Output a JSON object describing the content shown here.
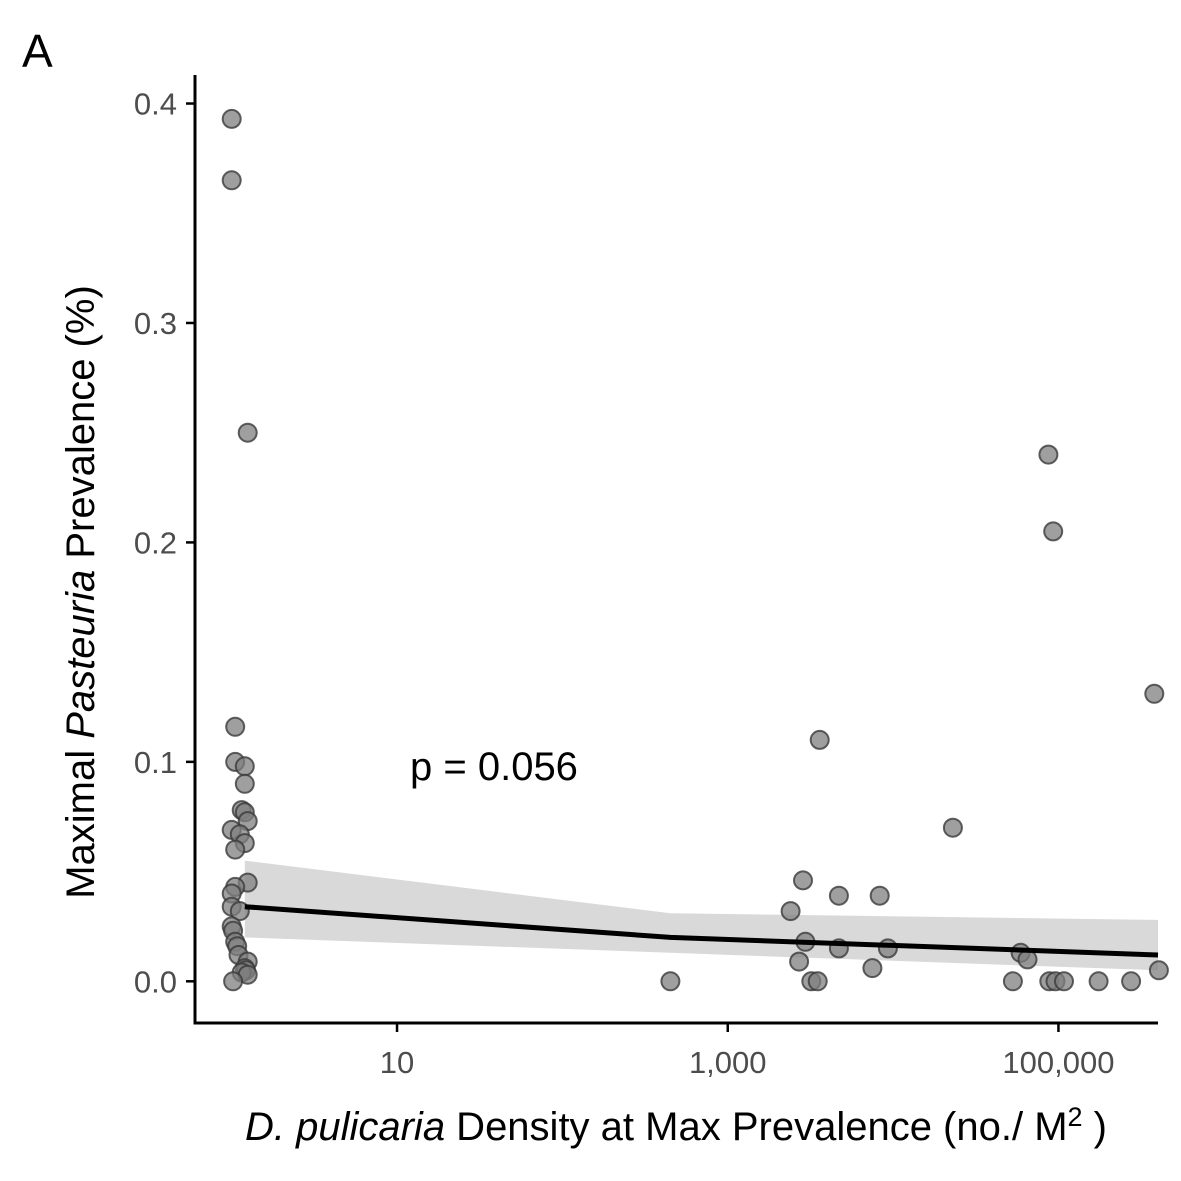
{
  "panel_label": "A",
  "annotation": "p = 0.056",
  "colors": {
    "points": "#7f7f7f",
    "band": "#d9d9d9",
    "fit_line": "#000000",
    "axis": "#000000",
    "tick_text": "#4d4d4d"
  },
  "chart_data": {
    "type": "scatter",
    "x_scale": "log10",
    "xlim": [
      0.6,
      400000
    ],
    "ylim": [
      -0.019,
      0.413
    ],
    "x_ticks": [
      10,
      1000,
      100000
    ],
    "x_tick_labels": [
      "10",
      "1,000",
      "100,000"
    ],
    "y_ticks": [
      0.0,
      0.1,
      0.2,
      0.3,
      0.4
    ],
    "y_tick_labels": [
      "0.0",
      "0.1",
      "0.2",
      "0.3",
      "0.4"
    ],
    "xlabel": {
      "italic": "D. pulicaria",
      "plain": " Density at Max Prevalence (no./ M",
      "sup": "2",
      "close": " )"
    },
    "ylabel": {
      "plain": "Maximal ",
      "italic": "Pasteuria",
      "rest": " Prevalence (%)"
    },
    "grid": false,
    "points": [
      {
        "x": 1.0,
        "y": 0.393
      },
      {
        "x": 1.0,
        "y": 0.365
      },
      {
        "x": 1.25,
        "y": 0.25
      },
      {
        "x": 1.05,
        "y": 0.116
      },
      {
        "x": 1.05,
        "y": 0.1
      },
      {
        "x": 1.2,
        "y": 0.098
      },
      {
        "x": 1.2,
        "y": 0.09
      },
      {
        "x": 1.15,
        "y": 0.078
      },
      {
        "x": 1.2,
        "y": 0.077
      },
      {
        "x": 1.25,
        "y": 0.073
      },
      {
        "x": 1.0,
        "y": 0.069
      },
      {
        "x": 1.12,
        "y": 0.067
      },
      {
        "x": 1.2,
        "y": 0.063
      },
      {
        "x": 1.05,
        "y": 0.06
      },
      {
        "x": 1.25,
        "y": 0.045
      },
      {
        "x": 1.05,
        "y": 0.043
      },
      {
        "x": 1.0,
        "y": 0.04
      },
      {
        "x": 1.0,
        "y": 0.034
      },
      {
        "x": 1.12,
        "y": 0.032
      },
      {
        "x": 1.0,
        "y": 0.025
      },
      {
        "x": 1.02,
        "y": 0.023
      },
      {
        "x": 1.05,
        "y": 0.018
      },
      {
        "x": 1.08,
        "y": 0.016
      },
      {
        "x": 1.1,
        "y": 0.012
      },
      {
        "x": 1.25,
        "y": 0.009
      },
      {
        "x": 1.2,
        "y": 0.006
      },
      {
        "x": 1.22,
        "y": 0.005
      },
      {
        "x": 1.15,
        "y": 0.004
      },
      {
        "x": 1.25,
        "y": 0.003
      },
      {
        "x": 1.02,
        "y": 0.0
      },
      {
        "x": 450,
        "y": 0.0
      },
      {
        "x": 2400,
        "y": 0.032
      },
      {
        "x": 2850,
        "y": 0.046
      },
      {
        "x": 3600,
        "y": 0.11
      },
      {
        "x": 2700,
        "y": 0.009
      },
      {
        "x": 2950,
        "y": 0.018
      },
      {
        "x": 3200,
        "y": 0.0
      },
      {
        "x": 3500,
        "y": 0.0
      },
      {
        "x": 4700,
        "y": 0.039
      },
      {
        "x": 4700,
        "y": 0.015
      },
      {
        "x": 7500,
        "y": 0.006
      },
      {
        "x": 8300,
        "y": 0.039
      },
      {
        "x": 9300,
        "y": 0.015
      },
      {
        "x": 23000,
        "y": 0.07
      },
      {
        "x": 53000,
        "y": 0.0
      },
      {
        "x": 59000,
        "y": 0.013
      },
      {
        "x": 65000,
        "y": 0.01
      },
      {
        "x": 87000,
        "y": 0.24
      },
      {
        "x": 93000,
        "y": 0.205
      },
      {
        "x": 88000,
        "y": 0.0
      },
      {
        "x": 96000,
        "y": 0.0
      },
      {
        "x": 108000,
        "y": 0.0
      },
      {
        "x": 175000,
        "y": 0.0
      },
      {
        "x": 275000,
        "y": 0.0
      },
      {
        "x": 380000,
        "y": 0.131
      },
      {
        "x": 405000,
        "y": 0.005
      }
    ],
    "fit_line": {
      "x": [
        1.2,
        450,
        400000
      ],
      "y": [
        0.034,
        0.02,
        0.012
      ]
    },
    "confidence_band": {
      "x": [
        1.2,
        450,
        400000
      ],
      "upper": [
        0.055,
        0.031,
        0.028
      ],
      "lower": [
        0.02,
        0.013,
        0.005
      ]
    }
  }
}
